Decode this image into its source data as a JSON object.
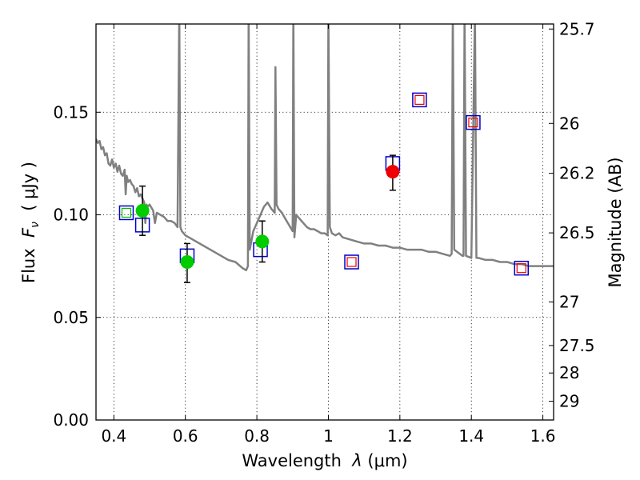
{
  "chart_data": {
    "type": "scatter",
    "title": "",
    "xlabel": {
      "prefix": "Wavelength  ",
      "symbol": "λ",
      "unit": " (μm)"
    },
    "ylabel": {
      "prefix": "Flux  ",
      "symbol": "F",
      "subscript": "ν",
      "unit": "  ( μJy )"
    },
    "y2label": "Magnitude (AB)",
    "xlim": [
      0.35,
      1.63
    ],
    "ylim": [
      0.0,
      0.193
    ],
    "grid": true,
    "x_ticks": [
      {
        "value": 0.4,
        "label": "0.4"
      },
      {
        "value": 0.6,
        "label": "0.6"
      },
      {
        "value": 0.8,
        "label": "0.8"
      },
      {
        "value": 1.0,
        "label": "1"
      },
      {
        "value": 1.2,
        "label": "1.2"
      },
      {
        "value": 1.4,
        "label": "1.4"
      },
      {
        "value": 1.6,
        "label": "1.6"
      }
    ],
    "y_ticks": [
      {
        "value": 0.0,
        "label": "0.00"
      },
      {
        "value": 0.05,
        "label": "0.05"
      },
      {
        "value": 0.1,
        "label": "0.10"
      },
      {
        "value": 0.15,
        "label": "0.15"
      }
    ],
    "y2_ticks": [
      {
        "value": 25.7,
        "label": "25.7"
      },
      {
        "value": 26,
        "label": "26"
      },
      {
        "value": 26.2,
        "label": "26.2"
      },
      {
        "value": 26.5,
        "label": "26.5"
      },
      {
        "value": 27,
        "label": "27"
      },
      {
        "value": 27.5,
        "label": "27.5"
      },
      {
        "value": 28,
        "label": "28"
      },
      {
        "value": 29,
        "label": "29"
      }
    ],
    "series": [
      {
        "name": "model-sed",
        "kind": "line",
        "color": "#808080",
        "points": [
          [
            0.35,
            0.137
          ],
          [
            0.355,
            0.135
          ],
          [
            0.36,
            0.136
          ],
          [
            0.365,
            0.132
          ],
          [
            0.37,
            0.133
          ],
          [
            0.375,
            0.129
          ],
          [
            0.38,
            0.13
          ],
          [
            0.385,
            0.125
          ],
          [
            0.39,
            0.124
          ],
          [
            0.395,
            0.127
          ],
          [
            0.4,
            0.123
          ],
          [
            0.405,
            0.125
          ],
          [
            0.41,
            0.121
          ],
          [
            0.415,
            0.124
          ],
          [
            0.42,
            0.12
          ],
          [
            0.425,
            0.119
          ],
          [
            0.43,
            0.122
          ],
          [
            0.433,
            0.11
          ],
          [
            0.436,
            0.119
          ],
          [
            0.44,
            0.116
          ],
          [
            0.445,
            0.117
          ],
          [
            0.45,
            0.115
          ],
          [
            0.455,
            0.114
          ],
          [
            0.46,
            0.111
          ],
          [
            0.465,
            0.113
          ],
          [
            0.47,
            0.109
          ],
          [
            0.475,
            0.11
          ],
          [
            0.48,
            0.108
          ],
          [
            0.485,
            0.106
          ],
          [
            0.488,
            0.096
          ],
          [
            0.491,
            0.105
          ],
          [
            0.495,
            0.104
          ],
          [
            0.5,
            0.105
          ],
          [
            0.51,
            0.102
          ],
          [
            0.515,
            0.096
          ],
          [
            0.52,
            0.101
          ],
          [
            0.53,
            0.1
          ],
          [
            0.54,
            0.099
          ],
          [
            0.55,
            0.097
          ],
          [
            0.56,
            0.097
          ],
          [
            0.57,
            0.096
          ],
          [
            0.578,
            0.094
          ],
          [
            0.583,
            0.2
          ],
          [
            0.586,
            0.094
          ],
          [
            0.59,
            0.092
          ],
          [
            0.6,
            0.09
          ],
          [
            0.62,
            0.088
          ],
          [
            0.64,
            0.086
          ],
          [
            0.66,
            0.084
          ],
          [
            0.68,
            0.082
          ],
          [
            0.7,
            0.08
          ],
          [
            0.72,
            0.078
          ],
          [
            0.74,
            0.077
          ],
          [
            0.76,
            0.074
          ],
          [
            0.77,
            0.073
          ],
          [
            0.775,
            0.075
          ],
          [
            0.777,
            0.2
          ],
          [
            0.78,
            0.083
          ],
          [
            0.79,
            0.092
          ],
          [
            0.8,
            0.096
          ],
          [
            0.81,
            0.1
          ],
          [
            0.82,
            0.104
          ],
          [
            0.83,
            0.106
          ],
          [
            0.84,
            0.103
          ],
          [
            0.85,
            0.101
          ],
          [
            0.852,
            0.172
          ],
          [
            0.855,
            0.105
          ],
          [
            0.86,
            0.103
          ],
          [
            0.87,
            0.101
          ],
          [
            0.88,
            0.098
          ],
          [
            0.89,
            0.095
          ],
          [
            0.9,
            0.092
          ],
          [
            0.902,
            0.2
          ],
          [
            0.905,
            0.089
          ],
          [
            0.91,
            0.1
          ],
          [
            0.92,
            0.098
          ],
          [
            0.93,
            0.096
          ],
          [
            0.94,
            0.094
          ],
          [
            0.95,
            0.093
          ],
          [
            0.96,
            0.093
          ],
          [
            0.97,
            0.092
          ],
          [
            0.98,
            0.091
          ],
          [
            0.99,
            0.091
          ],
          [
            0.998,
            0.09
          ],
          [
            1.0,
            0.2
          ],
          [
            1.004,
            0.094
          ],
          [
            1.01,
            0.091
          ],
          [
            1.02,
            0.09
          ],
          [
            1.03,
            0.091
          ],
          [
            1.04,
            0.089
          ],
          [
            1.06,
            0.088
          ],
          [
            1.08,
            0.087
          ],
          [
            1.1,
            0.086
          ],
          [
            1.12,
            0.086
          ],
          [
            1.14,
            0.085
          ],
          [
            1.16,
            0.085
          ],
          [
            1.18,
            0.084
          ],
          [
            1.2,
            0.084
          ],
          [
            1.22,
            0.083
          ],
          [
            1.24,
            0.083
          ],
          [
            1.26,
            0.083
          ],
          [
            1.28,
            0.082
          ],
          [
            1.3,
            0.082
          ],
          [
            1.32,
            0.081
          ],
          [
            1.34,
            0.08
          ],
          [
            1.345,
            0.081
          ],
          [
            1.348,
            0.2
          ],
          [
            1.352,
            0.083
          ],
          [
            1.36,
            0.082
          ],
          [
            1.375,
            0.08
          ],
          [
            1.378,
            0.08
          ],
          [
            1.381,
            0.2
          ],
          [
            1.385,
            0.08
          ],
          [
            1.4,
            0.079
          ],
          [
            1.41,
            0.2
          ],
          [
            1.414,
            0.079
          ],
          [
            1.42,
            0.079
          ],
          [
            1.44,
            0.078
          ],
          [
            1.46,
            0.078
          ],
          [
            1.48,
            0.077
          ],
          [
            1.5,
            0.077
          ],
          [
            1.52,
            0.076
          ],
          [
            1.54,
            0.076
          ],
          [
            1.56,
            0.075
          ],
          [
            1.58,
            0.075
          ],
          [
            1.6,
            0.075
          ],
          [
            1.63,
            0.075
          ]
        ]
      }
    ],
    "model_photometry": {
      "color": "#0000cc",
      "points": [
        {
          "x": 0.435,
          "y": 0.101
        },
        {
          "x": 0.48,
          "y": 0.095
        },
        {
          "x": 0.605,
          "y": 0.08
        },
        {
          "x": 0.81,
          "y": 0.083
        },
        {
          "x": 1.065,
          "y": 0.077
        },
        {
          "x": 1.18,
          "y": 0.125
        },
        {
          "x": 1.255,
          "y": 0.156
        },
        {
          "x": 1.405,
          "y": 0.145
        },
        {
          "x": 1.54,
          "y": 0.074
        }
      ]
    },
    "upper_limit_markers": {
      "color": "#ee0000",
      "points": [
        {
          "x": 1.065,
          "y": 0.077
        },
        {
          "x": 1.255,
          "y": 0.156
        },
        {
          "x": 1.405,
          "y": 0.145
        },
        {
          "x": 1.54,
          "y": 0.074
        }
      ]
    },
    "empty_markers": {
      "color": "#00bb00",
      "points": [
        {
          "x": 0.435,
          "y": 0.101
        }
      ]
    },
    "observed": [
      {
        "x": 0.48,
        "y": 0.102,
        "err": [
          0.09,
          0.114
        ],
        "color": "#00cc00"
      },
      {
        "x": 0.605,
        "y": 0.077,
        "err": [
          0.067,
          0.086
        ],
        "color": "#00cc00"
      },
      {
        "x": 0.815,
        "y": 0.087,
        "err": [
          0.077,
          0.097
        ],
        "color": "#00cc00"
      },
      {
        "x": 1.18,
        "y": 0.121,
        "err": [
          0.112,
          0.129
        ],
        "color": "#ee0000"
      }
    ]
  }
}
